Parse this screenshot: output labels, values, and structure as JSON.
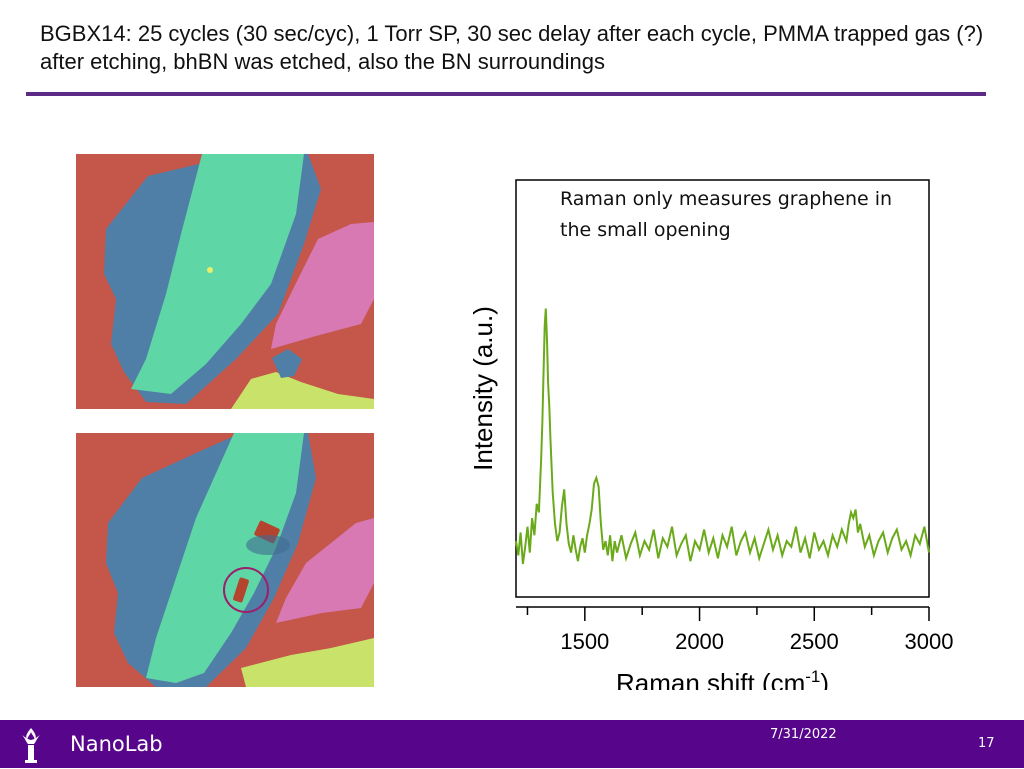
{
  "slide": {
    "title": "BGBX14: 25 cycles (30 sec/cyc), 1 Torr SP, 30 sec delay after each cycle, PMMA trapped gas (?) after etching, bhBN was etched, also the BN surroundings",
    "annotation": "Raman only measures graphene in the small opening"
  },
  "footer": {
    "brand": "NanoLab",
    "date": "7/31/2022",
    "page": "17",
    "logo_icon": "torch-icon"
  },
  "colors": {
    "accent": "#57068c",
    "rule": "#5b2a86",
    "spectrum": "#6aaa1a",
    "substrate": "#c4564a",
    "flake_blue": "#4f7fa6",
    "flake_green": "#5fd6a6",
    "flake_pink": "#d879b4",
    "flake_yellow": "#c9e36a"
  },
  "chart_data": {
    "type": "line",
    "xlabel": "Raman shift (cm",
    "xlabel_sup": "-1",
    "xlabel_end": ")",
    "ylabel": "Intensity (a.u.)",
    "xlim": [
      1200,
      3000
    ],
    "ylim": [
      0,
      1
    ],
    "x_ticks": [
      1500,
      2000,
      2500,
      3000
    ],
    "x_tick_labels": [
      "1500",
      "2000",
      "2500",
      "3000"
    ],
    "y_tick_labels_shown": false,
    "grid": false,
    "series": [
      {
        "x": [
          1200,
          1210,
          1220,
          1230,
          1240,
          1250,
          1260,
          1270,
          1280,
          1290,
          1300,
          1310,
          1315,
          1320,
          1325,
          1330,
          1335,
          1340,
          1345,
          1350,
          1355,
          1360,
          1370,
          1380,
          1390,
          1400,
          1410,
          1420,
          1430,
          1440,
          1450,
          1460,
          1470,
          1480,
          1490,
          1500,
          1510,
          1520,
          1530,
          1540,
          1550,
          1560,
          1570,
          1580,
          1590,
          1600,
          1610,
          1620,
          1630,
          1640,
          1660,
          1680,
          1700,
          1720,
          1740,
          1760,
          1780,
          1800,
          1820,
          1840,
          1860,
          1880,
          1900,
          1920,
          1940,
          1960,
          1980,
          2000,
          2020,
          2040,
          2060,
          2080,
          2100,
          2120,
          2140,
          2160,
          2180,
          2200,
          2220,
          2240,
          2260,
          2280,
          2300,
          2320,
          2340,
          2360,
          2380,
          2400,
          2420,
          2440,
          2460,
          2480,
          2500,
          2520,
          2540,
          2560,
          2580,
          2600,
          2620,
          2640,
          2650,
          2660,
          2670,
          2680,
          2690,
          2700,
          2720,
          2740,
          2760,
          2780,
          2800,
          2820,
          2840,
          2860,
          2880,
          2900,
          2920,
          2940,
          2960,
          2980,
          3000
        ],
        "values": [
          0.16,
          0.11,
          0.19,
          0.08,
          0.14,
          0.21,
          0.12,
          0.24,
          0.18,
          0.29,
          0.26,
          0.45,
          0.58,
          0.74,
          0.91,
          0.97,
          0.86,
          0.71,
          0.63,
          0.52,
          0.42,
          0.33,
          0.22,
          0.16,
          0.19,
          0.28,
          0.34,
          0.22,
          0.15,
          0.12,
          0.18,
          0.13,
          0.09,
          0.14,
          0.17,
          0.12,
          0.18,
          0.22,
          0.27,
          0.36,
          0.38,
          0.35,
          0.22,
          0.13,
          0.16,
          0.11,
          0.18,
          0.09,
          0.16,
          0.12,
          0.18,
          0.1,
          0.15,
          0.19,
          0.11,
          0.16,
          0.13,
          0.2,
          0.1,
          0.17,
          0.14,
          0.21,
          0.11,
          0.15,
          0.18,
          0.09,
          0.16,
          0.13,
          0.2,
          0.12,
          0.17,
          0.1,
          0.18,
          0.14,
          0.21,
          0.11,
          0.16,
          0.19,
          0.12,
          0.17,
          0.1,
          0.15,
          0.2,
          0.13,
          0.18,
          0.11,
          0.16,
          0.14,
          0.21,
          0.12,
          0.17,
          0.1,
          0.19,
          0.13,
          0.16,
          0.11,
          0.18,
          0.14,
          0.2,
          0.16,
          0.22,
          0.26,
          0.24,
          0.27,
          0.19,
          0.22,
          0.14,
          0.18,
          0.11,
          0.16,
          0.19,
          0.12,
          0.17,
          0.2,
          0.13,
          0.16,
          0.11,
          0.18,
          0.15,
          0.21,
          0.12
        ]
      }
    ]
  }
}
